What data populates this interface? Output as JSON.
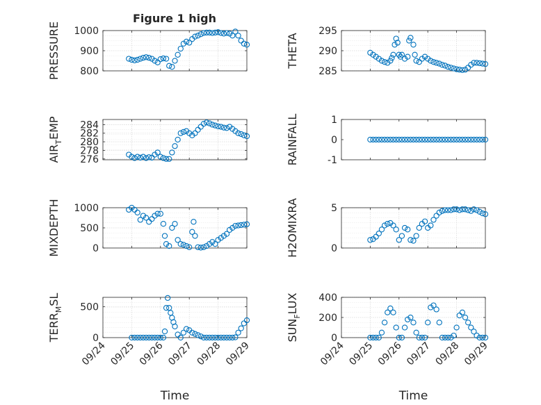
{
  "figure": {
    "title": "Figure 1 high"
  },
  "chart_data": [
    {
      "type": "scatter",
      "id": "pressure",
      "ylabel": "PRESSURE",
      "xlabel": "",
      "ylim": [
        800,
        1000
      ],
      "yticks": [
        "800",
        "900",
        "1000"
      ],
      "grid": true,
      "x": [
        0.9,
        1.0,
        1.1,
        1.2,
        1.3,
        1.4,
        1.5,
        1.6,
        1.7,
        1.8,
        1.9,
        2.0,
        2.1,
        2.2,
        2.3,
        2.4,
        2.5,
        2.6,
        2.7,
        2.8,
        2.9,
        3.0,
        3.1,
        3.2,
        3.3,
        3.4,
        3.5,
        3.6,
        3.7,
        3.8,
        3.9,
        4.0,
        4.1,
        4.2,
        4.3,
        4.4,
        4.5,
        4.6,
        4.7,
        4.8,
        4.9,
        5.0
      ],
      "y": [
        860,
        855,
        852,
        855,
        860,
        865,
        868,
        865,
        860,
        850,
        842,
        858,
        862,
        860,
        825,
        820,
        850,
        880,
        910,
        935,
        945,
        940,
        958,
        970,
        975,
        982,
        988,
        990,
        990,
        988,
        990,
        992,
        988,
        985,
        988,
        985,
        975,
        995,
        975,
        950,
        935,
        930
      ]
    },
    {
      "type": "scatter",
      "id": "theta",
      "ylabel": "THETA",
      "xlabel": "",
      "ylim": [
        285,
        295
      ],
      "yticks": [
        "285",
        "290",
        "295"
      ],
      "grid": true,
      "x": [
        1.0,
        1.1,
        1.2,
        1.3,
        1.4,
        1.5,
        1.6,
        1.7,
        1.75,
        1.8,
        1.85,
        1.9,
        1.95,
        2.0,
        2.05,
        2.1,
        2.2,
        2.3,
        2.35,
        2.4,
        2.5,
        2.55,
        2.6,
        2.7,
        2.8,
        2.9,
        3.0,
        3.1,
        3.2,
        3.3,
        3.4,
        3.5,
        3.6,
        3.7,
        3.8,
        3.9,
        4.0,
        4.1,
        4.2,
        4.3,
        4.4,
        4.5,
        4.6,
        4.7,
        4.8,
        4.9,
        5.0
      ],
      "y": [
        289.5,
        289.0,
        288.5,
        288.0,
        287.5,
        287.2,
        287.0,
        287.5,
        288.2,
        289.0,
        291.5,
        293.0,
        292.0,
        289.0,
        288.5,
        289.0,
        288.0,
        288.5,
        292.5,
        293.2,
        291.5,
        289.0,
        287.5,
        287.2,
        288.0,
        288.5,
        288.0,
        287.5,
        287.2,
        287.0,
        286.8,
        286.5,
        286.3,
        286.0,
        285.8,
        285.6,
        285.4,
        285.3,
        285.2,
        285.3,
        285.8,
        286.5,
        287.0,
        287.0,
        286.9,
        286.8,
        286.7
      ]
    },
    {
      "type": "scatter",
      "id": "air_temp",
      "ylabel": "AIR",
      "ylabel_sub": "T",
      "ylabel_tail": "EMP",
      "xlabel": "",
      "ylim": [
        275.8,
        285.2
      ],
      "yticks": [
        "276",
        "278",
        "280",
        "282",
        "284"
      ],
      "grid": true,
      "x": [
        0.9,
        1.0,
        1.1,
        1.2,
        1.3,
        1.4,
        1.5,
        1.6,
        1.7,
        1.8,
        1.9,
        2.0,
        2.1,
        2.2,
        2.3,
        2.4,
        2.5,
        2.6,
        2.7,
        2.8,
        2.9,
        3.0,
        3.1,
        3.2,
        3.3,
        3.4,
        3.5,
        3.6,
        3.7,
        3.8,
        3.9,
        4.0,
        4.1,
        4.2,
        4.3,
        4.4,
        4.5,
        4.6,
        4.7,
        4.8,
        4.9,
        5.0
      ],
      "y": [
        277.0,
        276.5,
        276.2,
        276.5,
        276.3,
        276.5,
        276.2,
        276.4,
        276.3,
        277.0,
        277.5,
        276.5,
        276.2,
        276.0,
        276.0,
        277.5,
        279.0,
        280.5,
        282.0,
        282.3,
        282.5,
        282.0,
        281.5,
        282.0,
        282.8,
        283.5,
        284.2,
        284.5,
        284.3,
        284.0,
        283.8,
        283.6,
        283.5,
        283.3,
        283.2,
        283.5,
        283.0,
        282.5,
        282.0,
        281.8,
        281.5,
        281.3
      ]
    },
    {
      "type": "scatter",
      "id": "rainfall",
      "ylabel": "RAINFALL",
      "xlabel": "",
      "ylim": [
        -1,
        1
      ],
      "yticks": [
        "-1",
        "0",
        "1"
      ],
      "grid": false,
      "x": [
        1.0,
        1.1,
        1.2,
        1.3,
        1.4,
        1.5,
        1.6,
        1.7,
        1.8,
        1.9,
        2.0,
        2.1,
        2.2,
        2.3,
        2.4,
        2.5,
        2.6,
        2.7,
        2.8,
        2.9,
        3.0,
        3.1,
        3.2,
        3.3,
        3.4,
        3.5,
        3.6,
        3.7,
        3.8,
        3.9,
        4.0,
        4.1,
        4.2,
        4.3,
        4.4,
        4.5,
        4.6,
        4.7,
        4.8,
        4.9,
        5.0
      ],
      "y": [
        0,
        0,
        0,
        0,
        0,
        0,
        0,
        0,
        0,
        0,
        0,
        0,
        0,
        0,
        0,
        0,
        0,
        0,
        0,
        0,
        0,
        0,
        0,
        0,
        0,
        0,
        0,
        0,
        0,
        0,
        0,
        0,
        0,
        0,
        0,
        0,
        0,
        0,
        0,
        0,
        0
      ]
    },
    {
      "type": "scatter",
      "id": "mixdepth",
      "ylabel": "MIXDEPTH",
      "xlabel": "",
      "ylim": [
        0,
        1000
      ],
      "yticks": [
        "0",
        "500",
        "1000"
      ],
      "grid": true,
      "x": [
        0.9,
        1.0,
        1.1,
        1.2,
        1.3,
        1.4,
        1.5,
        1.6,
        1.7,
        1.8,
        1.9,
        2.0,
        2.1,
        2.15,
        2.2,
        2.3,
        2.4,
        2.5,
        2.6,
        2.7,
        2.8,
        2.9,
        3.0,
        3.1,
        3.15,
        3.2,
        3.3,
        3.4,
        3.5,
        3.6,
        3.7,
        3.8,
        3.9,
        4.0,
        4.1,
        4.2,
        4.3,
        4.4,
        4.5,
        4.6,
        4.7,
        4.8,
        4.9,
        5.0
      ],
      "y": [
        950,
        1000,
        950,
        880,
        700,
        800,
        750,
        650,
        720,
        800,
        850,
        850,
        600,
        300,
        100,
        50,
        500,
        600,
        200,
        100,
        80,
        50,
        20,
        400,
        650,
        300,
        20,
        10,
        20,
        50,
        100,
        150,
        100,
        200,
        250,
        300,
        350,
        450,
        500,
        550,
        560,
        570,
        580,
        590
      ]
    },
    {
      "type": "scatter",
      "id": "h2omixra",
      "ylabel": "H2OMIXRA",
      "xlabel": "",
      "ylim": [
        0,
        5
      ],
      "yticks": [
        "0",
        "5"
      ],
      "grid": true,
      "x": [
        1.0,
        1.1,
        1.2,
        1.3,
        1.4,
        1.5,
        1.6,
        1.7,
        1.8,
        1.9,
        2.0,
        2.1,
        2.2,
        2.3,
        2.4,
        2.5,
        2.6,
        2.7,
        2.8,
        2.9,
        3.0,
        3.1,
        3.2,
        3.3,
        3.4,
        3.5,
        3.6,
        3.7,
        3.8,
        3.9,
        4.0,
        4.1,
        4.2,
        4.3,
        4.4,
        4.5,
        4.6,
        4.7,
        4.8,
        4.9,
        5.0
      ],
      "y": [
        1.0,
        1.1,
        1.4,
        1.8,
        2.3,
        2.8,
        3.0,
        3.1,
        2.8,
        2.3,
        1.0,
        1.5,
        2.5,
        2.3,
        1.0,
        0.9,
        1.5,
        2.5,
        3.0,
        3.3,
        2.5,
        2.8,
        3.5,
        4.0,
        4.4,
        4.6,
        4.7,
        4.7,
        4.7,
        4.8,
        4.8,
        4.7,
        4.8,
        4.8,
        4.7,
        4.6,
        4.8,
        4.7,
        4.5,
        4.3,
        4.2
      ]
    },
    {
      "type": "scatter",
      "id": "terr_msl",
      "ylabel": "TERR",
      "ylabel_sub": "M",
      "ylabel_tail": "SL",
      "xlabel": "Time",
      "ylim": [
        0,
        650
      ],
      "yticks": [
        "0",
        "500"
      ],
      "grid": true,
      "xticklabels": [
        "09/24",
        "09/25",
        "09/26",
        "09/27",
        "09/28",
        "09/29"
      ],
      "x": [
        1.0,
        1.1,
        1.2,
        1.3,
        1.4,
        1.5,
        1.6,
        1.7,
        1.8,
        1.9,
        2.0,
        2.1,
        2.15,
        2.2,
        2.25,
        2.3,
        2.35,
        2.4,
        2.45,
        2.5,
        2.6,
        2.7,
        2.8,
        2.9,
        3.0,
        3.1,
        3.2,
        3.3,
        3.4,
        3.5,
        3.6,
        3.7,
        3.8,
        3.9,
        4.0,
        4.1,
        4.2,
        4.3,
        4.4,
        4.5,
        4.6,
        4.7,
        4.8,
        4.9,
        5.0
      ],
      "y": [
        0,
        0,
        0,
        0,
        0,
        0,
        0,
        0,
        0,
        0,
        0,
        0,
        100,
        480,
        640,
        480,
        400,
        320,
        250,
        180,
        50,
        0,
        80,
        140,
        120,
        80,
        60,
        40,
        20,
        0,
        0,
        0,
        0,
        0,
        0,
        0,
        0,
        0,
        0,
        0,
        5,
        80,
        150,
        230,
        280
      ]
    },
    {
      "type": "scatter",
      "id": "sun_flux",
      "ylabel": "SUN",
      "ylabel_sub": "F",
      "ylabel_tail": "LUX",
      "xlabel": "Time",
      "ylim": [
        0,
        400
      ],
      "yticks": [
        "0",
        "200",
        "400"
      ],
      "grid": true,
      "xticklabels": [
        "09/24",
        "09/25",
        "09/26",
        "09/27",
        "09/28",
        "09/29"
      ],
      "x": [
        1.0,
        1.1,
        1.2,
        1.3,
        1.4,
        1.5,
        1.6,
        1.7,
        1.8,
        1.9,
        2.0,
        2.1,
        2.2,
        2.3,
        2.4,
        2.5,
        2.6,
        2.7,
        2.8,
        2.9,
        3.0,
        3.1,
        3.2,
        3.3,
        3.4,
        3.5,
        3.6,
        3.7,
        3.8,
        3.9,
        4.0,
        4.1,
        4.2,
        4.3,
        4.4,
        4.5,
        4.6,
        4.7,
        4.8,
        4.9,
        5.0
      ],
      "y": [
        0,
        0,
        0,
        0,
        50,
        150,
        250,
        290,
        250,
        100,
        0,
        0,
        100,
        180,
        200,
        150,
        50,
        0,
        0,
        0,
        150,
        300,
        320,
        280,
        150,
        0,
        0,
        0,
        0,
        20,
        100,
        220,
        250,
        200,
        150,
        100,
        60,
        20,
        0,
        0,
        0
      ]
    }
  ]
}
